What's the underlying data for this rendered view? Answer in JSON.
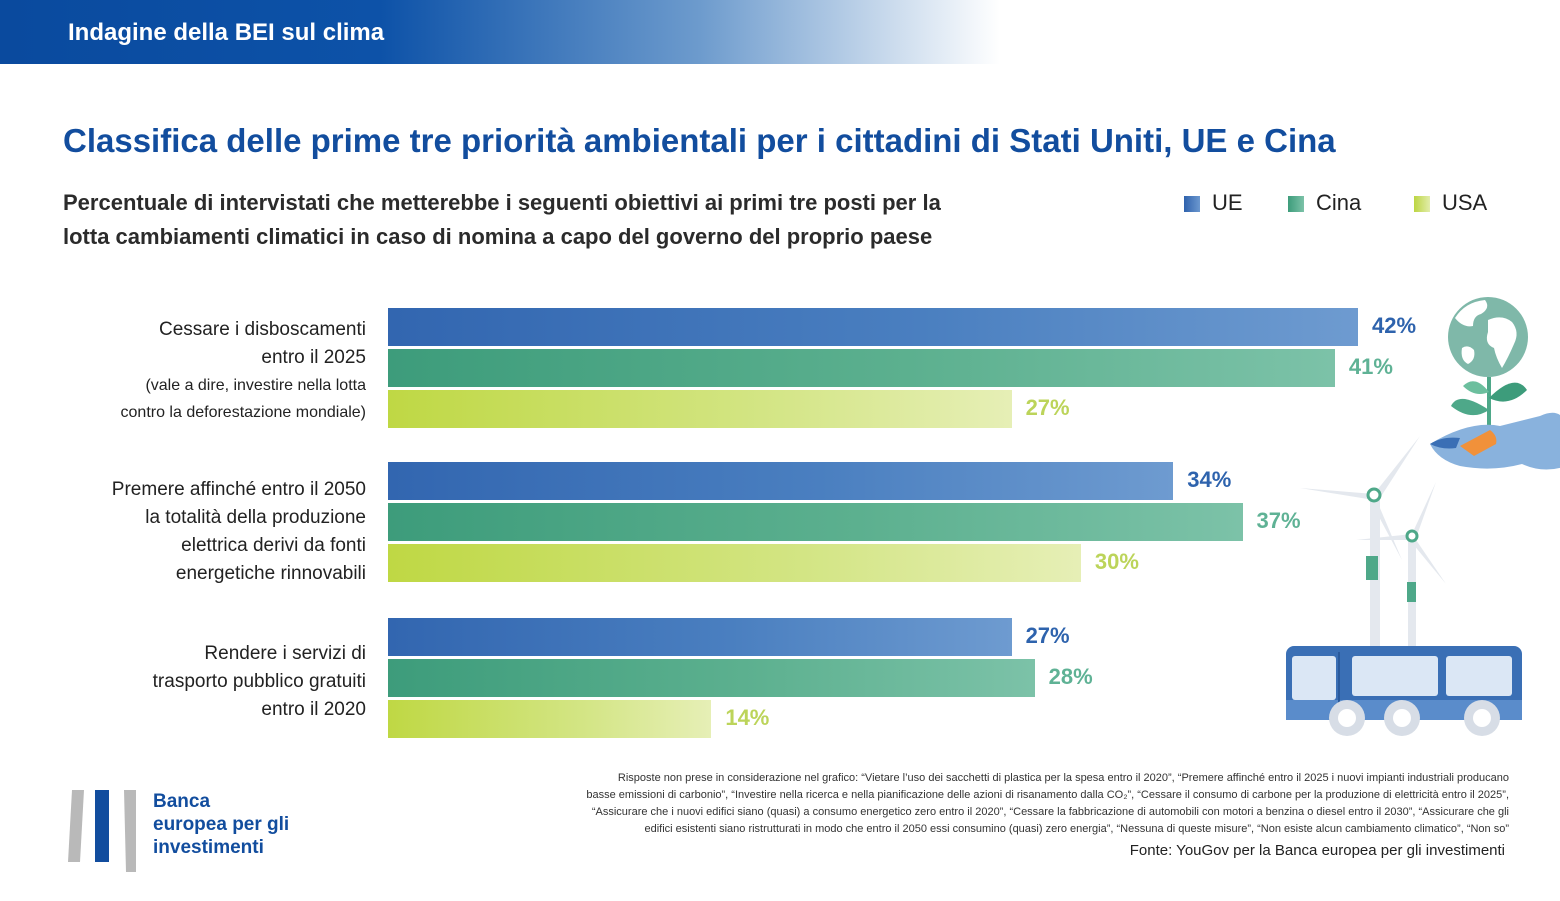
{
  "header": {
    "title": "Indagine della BEI sul clima"
  },
  "title": "Classifica delle prime tre priorità ambientali per i cittadini di Stati Uniti, UE e Cina",
  "subtitle": {
    "line1": "Percentuale di intervistati che metterebbe i seguenti obiettivi ai primi tre posti per la",
    "line2": "lotta cambiamenti climatici in caso di nomina a capo del governo del proprio paese"
  },
  "legend": [
    {
      "label": "UE",
      "color": "#3a6fb5"
    },
    {
      "label": "Cina",
      "color": "#4ea889"
    },
    {
      "label": "USA",
      "color": "#c5dc5a"
    }
  ],
  "categories": [
    {
      "lines": [
        "Cessare i disboscamenti",
        "entro il 2025"
      ],
      "note_lines": [
        "(vale a dire, investire nella lotta",
        "contro la deforestazione mondiale)"
      ]
    },
    {
      "lines": [
        "Premere affinché entro il 2050",
        "la totalità della produzione",
        "elettrica derivi da fonti",
        "energetiche rinnovabili"
      ],
      "note_lines": []
    },
    {
      "lines": [
        "Rendere i servizi di",
        "trasporto pubblico gratuiti",
        "entro il 2020"
      ],
      "note_lines": []
    }
  ],
  "chart_data": {
    "type": "bar",
    "orientation": "horizontal",
    "categories": [
      "Cessare i disboscamenti entro il 2025 (vale a dire, investire nella lotta contro la deforestazione mondiale)",
      "Premere affinché entro il 2050 la totalità della produzione elettrica derivi da fonti energetiche rinnovabili",
      "Rendere i servizi di trasporto pubblico gratuiti entro il 2020"
    ],
    "series": [
      {
        "name": "UE",
        "values": [
          42,
          34,
          27
        ],
        "labels": [
          "42%",
          "34%",
          "27%"
        ],
        "color": "#3a6fb5",
        "label_color": "#2e63ad"
      },
      {
        "name": "Cina",
        "values": [
          41,
          37,
          28
        ],
        "labels": [
          "41%",
          "37%",
          "28%"
        ],
        "color": "#4ea889",
        "label_color": "#5fb295"
      },
      {
        "name": "USA",
        "values": [
          27,
          30,
          14
        ],
        "labels": [
          "27%",
          "30%",
          "14%"
        ],
        "color": "#c5dc5a",
        "label_color": "#bcd45a"
      }
    ],
    "unit": "%",
    "xlim": [
      0,
      42
    ],
    "grid": false,
    "legend_position": "top-right"
  },
  "footnote": {
    "lines": [
      "Risposte non prese in considerazione nel grafico: “Vietare l’uso dei sacchetti di plastica per la spesa entro il 2020”, “Premere affinché entro il 2025 i nuovi impianti industriali producano",
      "basse emissioni di carbonio”, “Investire nella ricerca e nella pianificazione delle azioni di risanamento dalla CO₂”, “Cessare il consumo di carbone per la produzione di elettricità entro il 2025”,",
      "“Assicurare che i nuovi edifici siano (quasi) a consumo energetico zero entro il 2020”, “Cessare la fabbricazione di automobili con motori a benzina o diesel entro il 2030”, “Assicurare che gli",
      "edifici esistenti siano ristrutturati in modo che entro il 2050 essi consumino (quasi) zero energia”, “Nessuna di queste misure”, “Non esiste alcun cambiamento climatico”, “Non so”"
    ]
  },
  "source": "Fonte: YouGov per la Banca europea per gli investimenti",
  "logo": {
    "lines": [
      "Banca",
      "europea per gli",
      "investimenti"
    ]
  },
  "illustration": {
    "icons": [
      "globe-plant-hand-icon",
      "wind-turbine-icon",
      "bus-icon"
    ]
  }
}
